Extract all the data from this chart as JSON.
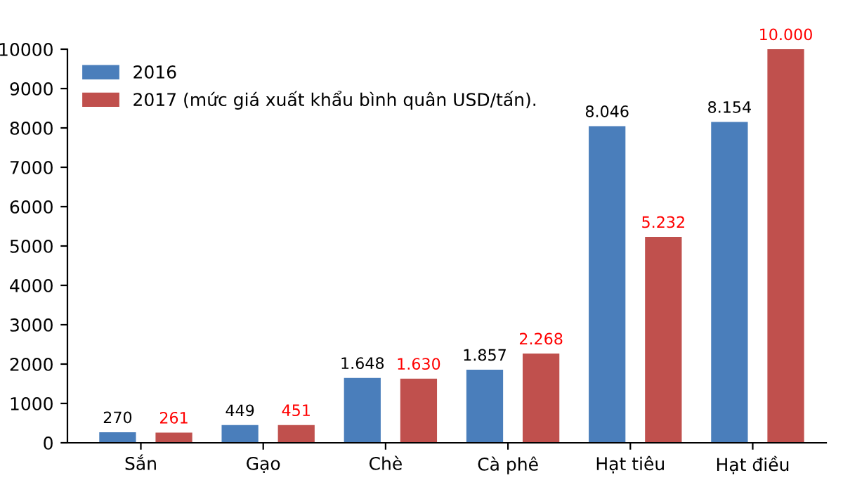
{
  "chart_data": {
    "type": "bar",
    "categories": [
      "Sắn",
      "Gạo",
      "Chè",
      "Cà phê",
      "Hạt tiêu",
      "Hạt điều"
    ],
    "series": [
      {
        "name": "2016",
        "color": "#4a7ebb",
        "values": [
          270,
          449,
          1648,
          1857,
          8046,
          8154
        ],
        "value_labels": [
          "270",
          "449",
          "1.648",
          "1.857",
          "8.046",
          "8.154"
        ]
      },
      {
        "name": "2017 (mức giá xuất khẩu bình quân USD/tấn).",
        "color": "#c0504d",
        "values": [
          261,
          451,
          1630,
          2268,
          5232,
          10000
        ],
        "value_labels": [
          "261",
          "451",
          "1.630",
          "2.268",
          "5.232",
          "10.000"
        ]
      }
    ],
    "ylim": [
      0,
      10000
    ],
    "yticks": [
      0,
      1000,
      2000,
      3000,
      4000,
      5000,
      6000,
      7000,
      8000,
      9000,
      10000
    ],
    "grid": false,
    "legend": "top left"
  }
}
